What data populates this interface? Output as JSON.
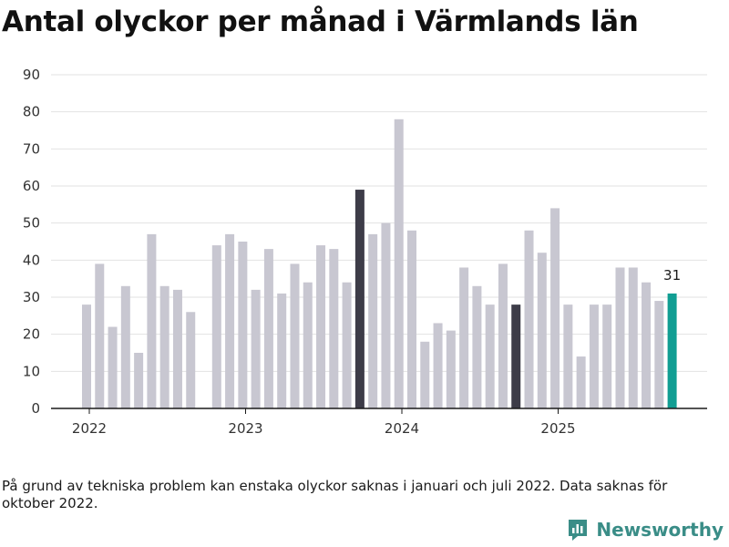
{
  "title": "Antal olyckor per månad i Värmlands län",
  "note": "På grund av tekniska problem kan enstaka olyckor saknas i januari och juli 2022. Data saknas för oktober 2022.",
  "brand": {
    "name": "Newsworthy",
    "icon": "newsworthy-logo-icon",
    "color": "#3a8d87"
  },
  "colors": {
    "default": "#c8c7d1",
    "highlight": "#3d3c48",
    "latest": "#119e93",
    "grid": "#e2e2e2",
    "axis": "#1a1a1a"
  },
  "chart_data": {
    "type": "bar",
    "title": "Antal olyckor per månad i Värmlands län",
    "xlabel": "",
    "ylabel": "",
    "ylim": [
      0,
      90
    ],
    "yticks": [
      0,
      10,
      20,
      30,
      40,
      50,
      60,
      70,
      80,
      90
    ],
    "xtick_labels": [
      "2022",
      "2023",
      "2024",
      "2025"
    ],
    "grid": true,
    "categories": [
      "2022-01",
      "2022-02",
      "2022-03",
      "2022-04",
      "2022-05",
      "2022-06",
      "2022-07",
      "2022-08",
      "2022-09",
      "2022-10",
      "2022-11",
      "2022-12",
      "2023-01",
      "2023-02",
      "2023-03",
      "2023-04",
      "2023-05",
      "2023-06",
      "2023-07",
      "2023-08",
      "2023-09",
      "2023-10",
      "2023-11",
      "2023-12",
      "2024-01",
      "2024-02",
      "2024-03",
      "2024-04",
      "2024-05",
      "2024-06",
      "2024-07",
      "2024-08",
      "2024-09",
      "2024-10",
      "2024-11",
      "2024-12",
      "2025-01",
      "2025-02",
      "2025-03",
      "2025-04",
      "2025-05",
      "2025-06",
      "2025-07",
      "2025-08",
      "2025-09",
      "2025-10"
    ],
    "values": [
      28,
      39,
      22,
      33,
      15,
      47,
      33,
      32,
      26,
      null,
      44,
      47,
      45,
      32,
      43,
      31,
      39,
      34,
      44,
      43,
      34,
      59,
      47,
      50,
      78,
      48,
      18,
      23,
      21,
      38,
      33,
      28,
      39,
      28,
      48,
      42,
      54,
      28,
      14,
      28,
      28,
      38,
      38,
      34,
      29,
      31
    ],
    "highlight": [
      "2023-10",
      "2024-10"
    ],
    "latest": "2025-10",
    "annotations": [
      {
        "x": "2025-10",
        "text": "31"
      }
    ]
  }
}
